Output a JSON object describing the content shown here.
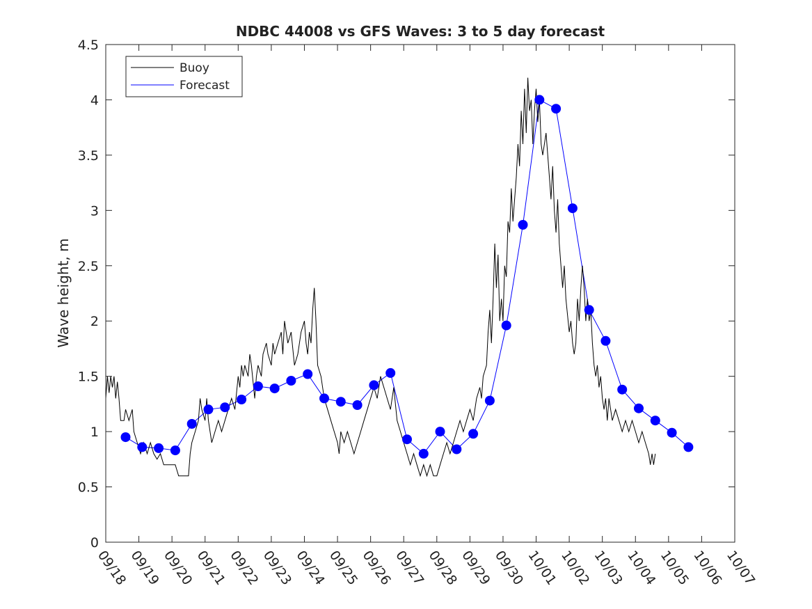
{
  "chart_data": {
    "type": "line",
    "title": "NDBC 44008 vs GFS Waves: 3 to 5 day forecast",
    "xlabel": "",
    "ylabel": "Wave height, m",
    "xlim": [
      0,
      19
    ],
    "ylim": [
      0,
      4.5
    ],
    "x_ticks": [
      0,
      1,
      2,
      3,
      4,
      5,
      6,
      7,
      8,
      9,
      10,
      11,
      12,
      13,
      14,
      15,
      16,
      17,
      18,
      19
    ],
    "x_tick_labels": [
      "09/18",
      "09/19",
      "09/20",
      "09/21",
      "09/22",
      "09/23",
      "09/24",
      "09/25",
      "09/26",
      "09/27",
      "09/28",
      "09/29",
      "09/30",
      "10/01",
      "10/02",
      "10/03",
      "10/04",
      "10/05",
      "10/06",
      "10/07"
    ],
    "y_ticks": [
      0,
      0.5,
      1,
      1.5,
      2,
      2.5,
      3,
      3.5,
      4,
      4.5
    ],
    "y_tick_labels": [
      "0",
      "0.5",
      "1",
      "1.5",
      "2",
      "2.5",
      "3",
      "3.5",
      "4",
      "4.5"
    ],
    "legend": {
      "position": "top-left",
      "entries": [
        {
          "label": "Buoy",
          "color": "#000000"
        },
        {
          "label": "Forecast",
          "color": "#0000ff"
        }
      ]
    },
    "series": [
      {
        "name": "Buoy",
        "color": "#000000",
        "points": [
          [
            0,
            1.3
          ],
          [
            0.05,
            1.5
          ],
          [
            0.1,
            1.35
          ],
          [
            0.15,
            1.5
          ],
          [
            0.2,
            1.4
          ],
          [
            0.25,
            1.5
          ],
          [
            0.3,
            1.3
          ],
          [
            0.35,
            1.45
          ],
          [
            0.4,
            1.3
          ],
          [
            0.45,
            1.1
          ],
          [
            0.55,
            1.1
          ],
          [
            0.6,
            1.2
          ],
          [
            0.7,
            1.1
          ],
          [
            0.8,
            1.2
          ],
          [
            0.85,
            1.0
          ],
          [
            0.95,
            0.9
          ],
          [
            1.05,
            0.8
          ],
          [
            1.15,
            0.9
          ],
          [
            1.25,
            0.8
          ],
          [
            1.35,
            0.9
          ],
          [
            1.45,
            0.8
          ],
          [
            1.55,
            0.75
          ],
          [
            1.65,
            0.8
          ],
          [
            1.75,
            0.7
          ],
          [
            1.9,
            0.7
          ],
          [
            2.0,
            0.7
          ],
          [
            2.1,
            0.7
          ],
          [
            2.2,
            0.6
          ],
          [
            2.4,
            0.6
          ],
          [
            2.5,
            0.6
          ],
          [
            2.55,
            0.8
          ],
          [
            2.6,
            0.9
          ],
          [
            2.7,
            1.0
          ],
          [
            2.8,
            1.1
          ],
          [
            2.85,
            1.3
          ],
          [
            2.9,
            1.2
          ],
          [
            3.0,
            1.1
          ],
          [
            3.05,
            1.3
          ],
          [
            3.1,
            1.1
          ],
          [
            3.2,
            0.9
          ],
          [
            3.3,
            1.0
          ],
          [
            3.4,
            1.1
          ],
          [
            3.5,
            1.0
          ],
          [
            3.6,
            1.1
          ],
          [
            3.7,
            1.2
          ],
          [
            3.8,
            1.3
          ],
          [
            3.9,
            1.2
          ],
          [
            4.0,
            1.5
          ],
          [
            4.05,
            1.4
          ],
          [
            4.1,
            1.6
          ],
          [
            4.15,
            1.5
          ],
          [
            4.2,
            1.6
          ],
          [
            4.3,
            1.5
          ],
          [
            4.35,
            1.7
          ],
          [
            4.4,
            1.6
          ],
          [
            4.5,
            1.3
          ],
          [
            4.55,
            1.5
          ],
          [
            4.6,
            1.6
          ],
          [
            4.7,
            1.5
          ],
          [
            4.75,
            1.7
          ],
          [
            4.85,
            1.8
          ],
          [
            4.9,
            1.7
          ],
          [
            5.0,
            1.6
          ],
          [
            5.05,
            1.8
          ],
          [
            5.1,
            1.7
          ],
          [
            5.2,
            1.8
          ],
          [
            5.3,
            1.9
          ],
          [
            5.35,
            1.7
          ],
          [
            5.4,
            2.0
          ],
          [
            5.5,
            1.8
          ],
          [
            5.6,
            1.9
          ],
          [
            5.7,
            1.6
          ],
          [
            5.8,
            1.7
          ],
          [
            5.9,
            1.9
          ],
          [
            6.0,
            2.0
          ],
          [
            6.05,
            1.8
          ],
          [
            6.1,
            1.7
          ],
          [
            6.15,
            1.9
          ],
          [
            6.2,
            1.8
          ],
          [
            6.25,
            2.1
          ],
          [
            6.3,
            2.3
          ],
          [
            6.35,
            2.0
          ],
          [
            6.4,
            1.6
          ],
          [
            6.5,
            1.5
          ],
          [
            6.6,
            1.3
          ],
          [
            6.7,
            1.2
          ],
          [
            6.8,
            1.1
          ],
          [
            6.9,
            1.0
          ],
          [
            7.0,
            0.9
          ],
          [
            7.05,
            0.8
          ],
          [
            7.1,
            1.0
          ],
          [
            7.2,
            0.9
          ],
          [
            7.3,
            1.0
          ],
          [
            7.4,
            0.9
          ],
          [
            7.5,
            0.8
          ],
          [
            7.6,
            0.9
          ],
          [
            7.7,
            1.0
          ],
          [
            7.8,
            1.1
          ],
          [
            7.9,
            1.2
          ],
          [
            8.0,
            1.3
          ],
          [
            8.1,
            1.4
          ],
          [
            8.2,
            1.3
          ],
          [
            8.3,
            1.5
          ],
          [
            8.4,
            1.4
          ],
          [
            8.5,
            1.3
          ],
          [
            8.6,
            1.2
          ],
          [
            8.7,
            1.4
          ],
          [
            8.8,
            1.1
          ],
          [
            8.9,
            1.0
          ],
          [
            9.0,
            0.9
          ],
          [
            9.1,
            0.8
          ],
          [
            9.2,
            0.7
          ],
          [
            9.3,
            0.8
          ],
          [
            9.4,
            0.7
          ],
          [
            9.5,
            0.6
          ],
          [
            9.6,
            0.7
          ],
          [
            9.7,
            0.6
          ],
          [
            9.8,
            0.7
          ],
          [
            9.9,
            0.6
          ],
          [
            10.0,
            0.6
          ],
          [
            10.1,
            0.7
          ],
          [
            10.2,
            0.8
          ],
          [
            10.3,
            0.9
          ],
          [
            10.4,
            0.8
          ],
          [
            10.5,
            0.9
          ],
          [
            10.6,
            1.0
          ],
          [
            10.7,
            1.1
          ],
          [
            10.8,
            1.0
          ],
          [
            10.9,
            1.1
          ],
          [
            11.0,
            1.2
          ],
          [
            11.1,
            1.1
          ],
          [
            11.2,
            1.3
          ],
          [
            11.3,
            1.4
          ],
          [
            11.35,
            1.3
          ],
          [
            11.4,
            1.5
          ],
          [
            11.5,
            1.6
          ],
          [
            11.55,
            1.9
          ],
          [
            11.6,
            2.1
          ],
          [
            11.65,
            1.8
          ],
          [
            11.7,
            2.2
          ],
          [
            11.75,
            2.7
          ],
          [
            11.8,
            2.3
          ],
          [
            11.85,
            2.6
          ],
          [
            11.9,
            2.0
          ],
          [
            11.95,
            2.2
          ],
          [
            12.0,
            2.0
          ],
          [
            12.05,
            2.5
          ],
          [
            12.1,
            2.4
          ],
          [
            12.15,
            2.9
          ],
          [
            12.2,
            2.8
          ],
          [
            12.25,
            3.2
          ],
          [
            12.3,
            2.9
          ],
          [
            12.35,
            3.1
          ],
          [
            12.4,
            3.3
          ],
          [
            12.45,
            3.6
          ],
          [
            12.5,
            3.4
          ],
          [
            12.55,
            3.9
          ],
          [
            12.6,
            3.6
          ],
          [
            12.65,
            4.1
          ],
          [
            12.7,
            3.7
          ],
          [
            12.75,
            4.2
          ],
          [
            12.8,
            3.9
          ],
          [
            12.85,
            4.0
          ],
          [
            12.9,
            3.6
          ],
          [
            12.95,
            3.9
          ],
          [
            13.0,
            4.1
          ],
          [
            13.05,
            3.8
          ],
          [
            13.1,
            4.0
          ],
          [
            13.15,
            3.6
          ],
          [
            13.2,
            3.5
          ],
          [
            13.3,
            3.7
          ],
          [
            13.4,
            3.3
          ],
          [
            13.45,
            3.1
          ],
          [
            13.5,
            3.4
          ],
          [
            13.55,
            3.0
          ],
          [
            13.6,
            2.8
          ],
          [
            13.65,
            3.1
          ],
          [
            13.7,
            2.7
          ],
          [
            13.75,
            2.5
          ],
          [
            13.8,
            2.3
          ],
          [
            13.85,
            2.5
          ],
          [
            13.9,
            2.2
          ],
          [
            14.0,
            1.9
          ],
          [
            14.05,
            2.0
          ],
          [
            14.1,
            1.8
          ],
          [
            14.15,
            1.7
          ],
          [
            14.2,
            1.8
          ],
          [
            14.25,
            2.2
          ],
          [
            14.3,
            2.0
          ],
          [
            14.35,
            2.3
          ],
          [
            14.4,
            2.5
          ],
          [
            14.45,
            2.3
          ],
          [
            14.5,
            2.0
          ],
          [
            14.55,
            2.2
          ],
          [
            14.6,
            2.0
          ],
          [
            14.65,
            2.1
          ],
          [
            14.7,
            1.8
          ],
          [
            14.75,
            1.6
          ],
          [
            14.8,
            1.5
          ],
          [
            14.85,
            1.6
          ],
          [
            14.9,
            1.4
          ],
          [
            14.95,
            1.5
          ],
          [
            15.0,
            1.3
          ],
          [
            15.05,
            1.2
          ],
          [
            15.1,
            1.3
          ],
          [
            15.15,
            1.1
          ],
          [
            15.2,
            1.3
          ],
          [
            15.25,
            1.2
          ],
          [
            15.3,
            1.1
          ],
          [
            15.4,
            1.2
          ],
          [
            15.5,
            1.1
          ],
          [
            15.6,
            1.0
          ],
          [
            15.7,
            1.1
          ],
          [
            15.8,
            1.0
          ],
          [
            15.9,
            1.1
          ],
          [
            16.0,
            1.0
          ],
          [
            16.1,
            0.9
          ],
          [
            16.2,
            1.0
          ],
          [
            16.3,
            0.9
          ],
          [
            16.4,
            0.8
          ],
          [
            16.45,
            0.7
          ],
          [
            16.5,
            0.8
          ],
          [
            16.55,
            0.7
          ],
          [
            16.6,
            0.8
          ]
        ]
      },
      {
        "name": "Forecast",
        "color": "#0000ff",
        "points": [
          [
            0.6,
            0.95
          ],
          [
            1.1,
            0.86
          ],
          [
            1.6,
            0.85
          ],
          [
            2.1,
            0.83
          ],
          [
            2.6,
            1.07
          ],
          [
            3.1,
            1.2
          ],
          [
            3.6,
            1.22
          ],
          [
            4.1,
            1.29
          ],
          [
            4.6,
            1.41
          ],
          [
            5.1,
            1.39
          ],
          [
            5.6,
            1.46
          ],
          [
            6.1,
            1.52
          ],
          [
            6.6,
            1.3
          ],
          [
            7.1,
            1.27
          ],
          [
            7.6,
            1.24
          ],
          [
            8.1,
            1.42
          ],
          [
            8.6,
            1.53
          ],
          [
            9.1,
            0.93
          ],
          [
            9.6,
            0.8
          ],
          [
            10.1,
            1.0
          ],
          [
            10.6,
            0.84
          ],
          [
            11.1,
            0.98
          ],
          [
            11.6,
            1.28
          ],
          [
            12.1,
            1.96
          ],
          [
            12.6,
            2.87
          ],
          [
            13.1,
            4.0
          ],
          [
            13.6,
            3.92
          ],
          [
            14.1,
            3.02
          ],
          [
            14.6,
            2.1
          ],
          [
            15.1,
            1.82
          ],
          [
            15.6,
            1.38
          ],
          [
            16.1,
            1.21
          ],
          [
            16.6,
            1.1
          ],
          [
            17.1,
            0.99
          ],
          [
            17.6,
            0.86
          ]
        ]
      }
    ]
  }
}
